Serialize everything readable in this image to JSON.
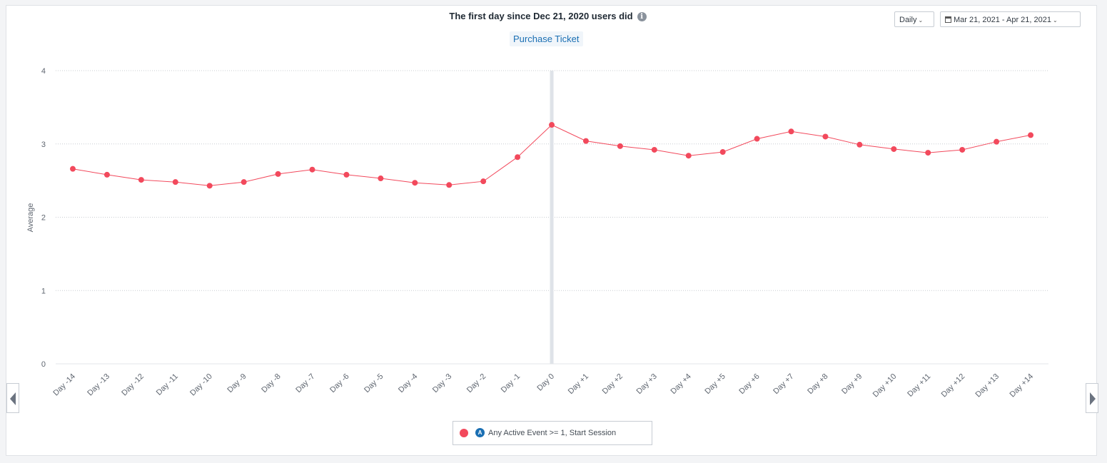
{
  "header": {
    "title": "The first day since Dec 21, 2020 users did",
    "info_glyph": "i",
    "event_name": "Purchase Ticket"
  },
  "controls": {
    "interval_label": "Daily",
    "date_range_label": "Mar 21, 2021 - Apr 21, 2021",
    "chevron_glyph": "⌄"
  },
  "legend": {
    "series_label": "Any Active Event >= 1, Start Session",
    "icon_glyph": "A"
  },
  "colors": {
    "series": "#f2495c",
    "marker_line": "#dfe3e8",
    "grid": "#c8ccd1",
    "axis_text": "#5f6670"
  },
  "icons": {
    "info": "info-icon",
    "calendar": "calendar-icon",
    "chevron": "chevron-down-icon",
    "nav_left": "caret-left-icon",
    "nav_right": "caret-right-icon",
    "event": "event-icon"
  },
  "chart_data": {
    "type": "line",
    "title": "The first day since Dec 21, 2020 users did",
    "subtitle": "Purchase Ticket",
    "xlabel": "",
    "ylabel": "Average",
    "ylim": [
      0,
      4
    ],
    "yticks": [
      0,
      1,
      2,
      3,
      4
    ],
    "grid": true,
    "highlight_category": "Day 0",
    "categories": [
      "Day -14",
      "Day -13",
      "Day -12",
      "Day -11",
      "Day -10",
      "Day -9",
      "Day -8",
      "Day -7",
      "Day -6",
      "Day -5",
      "Day -4",
      "Day -3",
      "Day -2",
      "Day -1",
      "Day 0",
      "Day +1",
      "Day +2",
      "Day +3",
      "Day +4",
      "Day +5",
      "Day +6",
      "Day +7",
      "Day +8",
      "Day +9",
      "Day +10",
      "Day +11",
      "Day +12",
      "Day +13",
      "Day +14"
    ],
    "series": [
      {
        "name": "Any Active Event >= 1, Start Session",
        "values": [
          2.66,
          2.58,
          2.51,
          2.48,
          2.43,
          2.48,
          2.59,
          2.65,
          2.58,
          2.53,
          2.47,
          2.44,
          2.49,
          2.82,
          3.26,
          3.04,
          2.97,
          2.92,
          2.84,
          2.89,
          3.07,
          3.17,
          3.1,
          2.99,
          2.93,
          2.88,
          2.92,
          3.03,
          3.12
        ]
      }
    ],
    "legend_position": "bottom"
  }
}
